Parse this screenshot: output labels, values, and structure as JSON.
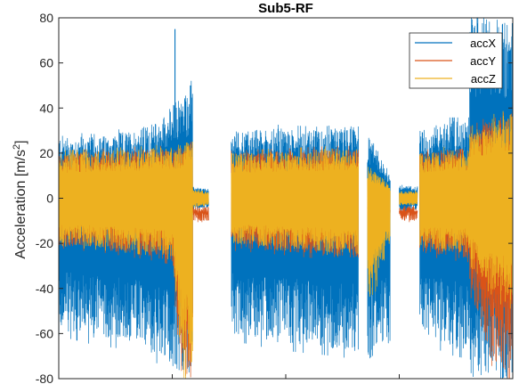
{
  "chart_data": {
    "type": "line",
    "title": "Sub5-RF",
    "xlabel": "",
    "ylabel": "Acceleration [m/s",
    "ylabel_superscript": "2",
    "ylabel_close": "]",
    "ylim": [
      -80,
      80
    ],
    "yticks": [
      -80,
      -60,
      -40,
      -20,
      0,
      20,
      40,
      60,
      80
    ],
    "ytick_labels": [
      "-80",
      "-60",
      "-40",
      "-20",
      "0",
      "20",
      "40",
      "60",
      "80"
    ],
    "xlim": [
      0,
      1
    ],
    "grid": false,
    "legend_position": "top-right",
    "series": [
      {
        "name": "accX",
        "color": "#0072BD",
        "segments": [
          {
            "x": [
              0.0,
              0.08,
              0.16,
              0.22,
              0.265,
              0.295
            ],
            "upper": [
              28,
              27,
              30,
              34,
              45,
              50
            ],
            "lower": [
              -58,
              -62,
              -64,
              -70,
              -78,
              -80
            ],
            "peaks": [
              {
                "x": 0.256,
                "y": 75
              },
              {
                "x": 0.29,
                "y": 50
              }
            ]
          },
          {
            "x": [
              0.295,
              0.33
            ],
            "upper": [
              5,
              4
            ],
            "lower": [
              -5,
              -4
            ]
          },
          {
            "x": [
              0.38,
              0.48,
              0.58,
              0.66
            ],
            "upper": [
              30,
              31,
              30,
              33
            ],
            "lower": [
              -60,
              -64,
              -66,
              -68
            ]
          },
          {
            "x": [
              0.68,
              0.73
            ],
            "upper": [
              28,
              10
            ],
            "lower": [
              -74,
              -60
            ]
          },
          {
            "x": [
              0.75,
              0.79
            ],
            "upper": [
              6,
              5
            ],
            "lower": [
              -6,
              -5
            ]
          },
          {
            "x": [
              0.795,
              0.86,
              0.905
            ],
            "upper": [
              30,
              34,
              34
            ],
            "lower": [
              -60,
              -66,
              -68
            ]
          },
          {
            "x": [
              0.905,
              0.95,
              1.0
            ],
            "upper": [
              80,
              80,
              80
            ],
            "lower": [
              -80,
              -80,
              -80
            ]
          }
        ]
      },
      {
        "name": "accY",
        "color": "#D95319",
        "segments": [
          {
            "x": [
              0.0,
              0.1,
              0.2,
              0.25,
              0.27,
              0.295
            ],
            "upper": [
              20,
              21,
              22,
              22,
              24,
              26
            ],
            "lower": [
              -21,
              -23,
              -26,
              -28,
              -80,
              -80
            ]
          },
          {
            "x": [
              0.295,
              0.33
            ],
            "upper": [
              -6,
              -7
            ],
            "lower": [
              -10,
              -10
            ]
          },
          {
            "x": [
              0.38,
              0.5,
              0.6,
              0.66
            ],
            "upper": [
              20,
              21,
              22,
              22
            ],
            "lower": [
              -22,
              -24,
              -26,
              -27
            ]
          },
          {
            "x": [
              0.68,
              0.73
            ],
            "upper": [
              -5,
              -6
            ],
            "lower": [
              -12,
              -12
            ]
          },
          {
            "x": [
              0.75,
              0.79
            ],
            "upper": [
              -6,
              -6
            ],
            "lower": [
              -10,
              -10
            ]
          },
          {
            "x": [
              0.795,
              0.86,
              0.905
            ],
            "upper": [
              20,
              22,
              22
            ],
            "lower": [
              -24,
              -26,
              -27
            ]
          },
          {
            "x": [
              0.905,
              0.95,
              1.0
            ],
            "upper": [
              30,
              35,
              40
            ],
            "lower": [
              -40,
              -70,
              -80
            ]
          }
        ]
      },
      {
        "name": "accZ",
        "color": "#EDB120",
        "segments": [
          {
            "x": [
              0.0,
              0.1,
              0.2,
              0.25,
              0.27,
              0.295
            ],
            "upper": [
              20,
              21,
              22,
              23,
              24,
              26
            ],
            "lower": [
              -20,
              -22,
              -24,
              -26,
              -75,
              -78
            ]
          },
          {
            "x": [
              0.295,
              0.33
            ],
            "upper": [
              4,
              3
            ],
            "lower": [
              -4,
              -3
            ]
          },
          {
            "x": [
              0.38,
              0.5,
              0.6,
              0.66
            ],
            "upper": [
              20,
              21,
              22,
              22
            ],
            "lower": [
              -20,
              -22,
              -24,
              -25
            ]
          },
          {
            "x": [
              0.68,
              0.73
            ],
            "upper": [
              15,
              5
            ],
            "lower": [
              -50,
              -20
            ]
          },
          {
            "x": [
              0.75,
              0.79
            ],
            "upper": [
              3,
              3
            ],
            "lower": [
              -3,
              -3
            ]
          },
          {
            "x": [
              0.795,
              0.86,
              0.905
            ],
            "upper": [
              20,
              22,
              22
            ],
            "lower": [
              -22,
              -24,
              -24
            ]
          },
          {
            "x": [
              0.905,
              0.95,
              1.0
            ],
            "upper": [
              30,
              35,
              38
            ],
            "lower": [
              -30,
              -40,
              -50
            ]
          }
        ]
      }
    ]
  }
}
